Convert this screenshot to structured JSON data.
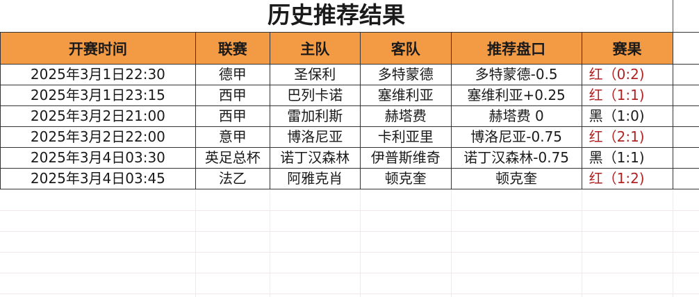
{
  "title": "历史推荐结果",
  "columns": [
    "开赛时间",
    "联赛",
    "主队",
    "客队",
    "推荐盘口",
    "赛果"
  ],
  "rows": [
    {
      "time": "2025年3月1日22:30",
      "league": "德甲",
      "home": "圣保利",
      "away": "多特蒙德",
      "pick": "多特蒙德-0.5",
      "result": "红（0:2)",
      "outcome": "red"
    },
    {
      "time": "2025年3月1日23:15",
      "league": "西甲",
      "home": "巴列卡诺",
      "away": "塞维利亚",
      "pick": "塞维利亚+0.25",
      "result": "红（1:1)",
      "outcome": "red"
    },
    {
      "time": "2025年3月2日21:00",
      "league": "西甲",
      "home": "雷加利斯",
      "away": "赫塔费",
      "pick": "赫塔费 0",
      "result": "黑（1:0)",
      "outcome": "black"
    },
    {
      "time": "2025年3月2日22:00",
      "league": "意甲",
      "home": "博洛尼亚",
      "away": "卡利亚里",
      "pick": "博洛尼亚-0.75",
      "result": "红（2:1)",
      "outcome": "red"
    },
    {
      "time": "2025年3月4日03:30",
      "league": "英足总杯",
      "home": "诺丁汉森林",
      "away": "伊普斯维奇",
      "pick": "诺丁汉森林-0.75",
      "result": "黑（1:1)",
      "outcome": "black"
    },
    {
      "time": "2025年3月4日03:45",
      "league": "法乙",
      "home": "阿雅克肖",
      "away": "顿克奎",
      "pick": "顿克奎",
      "result": "红（1:2)",
      "outcome": "red"
    }
  ],
  "colors": {
    "header_bg": "#f39a45",
    "red_result": "#b22222",
    "black_result": "#1a1a1a"
  }
}
